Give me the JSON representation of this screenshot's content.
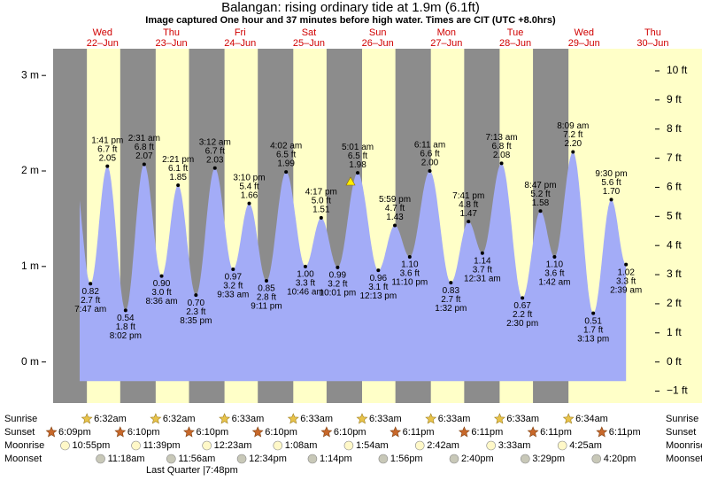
{
  "chart_data": {
    "type": "tide",
    "title": "Balangan: rising  ordinary tide at 1.9m (6.1ft)",
    "subtitle": "Image captured One hour and 37 minutes before high water. Times are CIT (UTC +8.0hrs)",
    "days": [
      {
        "weekday": "Wed",
        "date": "22–Jun"
      },
      {
        "weekday": "Thu",
        "date": "23–Jun"
      },
      {
        "weekday": "Fri",
        "date": "24–Jun"
      },
      {
        "weekday": "Sat",
        "date": "25–Jun"
      },
      {
        "weekday": "Sun",
        "date": "26–Jun"
      },
      {
        "weekday": "Mon",
        "date": "27–Jun"
      },
      {
        "weekday": "Tue",
        "date": "28–Jun"
      },
      {
        "weekday": "Wed",
        "date": "29–Jun"
      },
      {
        "weekday": "Thu",
        "date": "30–Jun"
      }
    ],
    "times": [
      "7:47 am",
      "1:41 pm",
      "8:02 pm",
      "2:31 am",
      "8:36 am",
      "2:21 pm",
      "8:35 pm",
      "3:12 am",
      "9:33 am",
      "3:10 pm",
      "9:11 pm",
      "4:02 am",
      "10:46 am",
      "4:17 pm",
      "10:01 pm",
      "5:01 am",
      "12:13 pm",
      "5:59 pm",
      "11:10 pm",
      "6:11 am",
      "1:32 pm",
      "7:41 pm",
      "12:31 am",
      "7:13 am",
      "2:30 pm",
      "8:47 pm",
      "1:42 am",
      "8:09 am",
      "3:13 pm",
      "9:30 pm",
      "2:39 am"
    ],
    "values": [
      0.82,
      2.05,
      0.54,
      2.07,
      0.9,
      1.85,
      0.7,
      2.03,
      0.97,
      1.66,
      0.85,
      1.99,
      1.0,
      1.51,
      0.99,
      1.98,
      0.96,
      1.43,
      1.1,
      2.0,
      0.83,
      1.47,
      1.14,
      2.08,
      0.67,
      1.58,
      1.1,
      2.2,
      0.51,
      1.7,
      1.02
    ],
    "value_labels": [
      "0.82",
      "2.05",
      "0.54",
      "2.07",
      "0.90",
      "1.85",
      "0.70",
      "2.03",
      "0.97",
      "1.66",
      "0.85",
      "1.99",
      "1.00",
      "1.51",
      "0.99",
      "1.98",
      "0.96",
      "1.43",
      "1.10",
      "2.00",
      "0.83",
      "1.47",
      "1.14",
      "2.08",
      "0.67",
      "1.58",
      "1.10",
      "2.20",
      "0.51",
      "1.70",
      "1.02"
    ],
    "ft_labels": [
      "2.7 ft",
      "6.7 ft",
      "1.8 ft",
      "6.8 ft",
      "3.0 ft",
      "6.1 ft",
      "2.3 ft",
      "6.7 ft",
      "3.2 ft",
      "5.4 ft",
      "2.8 ft",
      "6.5 ft",
      "3.3 ft",
      "5.0 ft",
      "3.2 ft",
      "6.5 ft",
      "3.1 ft",
      "4.7 ft",
      "3.6 ft",
      "6.6 ft",
      "2.7 ft",
      "4.8 ft",
      "3.7 ft",
      "6.8 ft",
      "2.2 ft",
      "5.2 ft",
      "3.6 ft",
      "7.2 ft",
      "1.7 ft",
      "5.6 ft",
      "3.3 ft"
    ],
    "color": "#a3acf7",
    "ylim": [
      -0.43,
      3.28
    ],
    "yticks": [
      {
        "value": 0,
        "label": "0 m"
      },
      {
        "value": 1,
        "label": "1 m"
      },
      {
        "value": 2,
        "label": "2 m"
      },
      {
        "value": 3,
        "label": "3 m"
      }
    ],
    "y2lim": [
      -1.41,
      10.76
    ],
    "y2ticks": [
      {
        "value": -1,
        "label": "−1 ft"
      },
      {
        "value": 0,
        "label": "0 ft"
      },
      {
        "value": 1,
        "label": "1 ft"
      },
      {
        "value": 2,
        "label": "2 ft"
      },
      {
        "value": 3,
        "label": "3 ft"
      },
      {
        "value": 4,
        "label": "4 ft"
      },
      {
        "value": 5,
        "label": "5 ft"
      },
      {
        "value": 6,
        "label": "6 ft"
      },
      {
        "value": 7,
        "label": "7 ft"
      },
      {
        "value": 8,
        "label": "8 ft"
      },
      {
        "value": 9,
        "label": "9 ft"
      },
      {
        "value": 10,
        "label": "10 ft"
      }
    ],
    "rows": {
      "sunrise": {
        "label": "Sunrise",
        "times": [
          "6:32am",
          "6:32am",
          "6:33am",
          "6:33am",
          "6:33am",
          "6:33am",
          "6:33am",
          "6:34am"
        ]
      },
      "sunset": {
        "label": "Sunset",
        "times": [
          "6:09pm",
          "6:10pm",
          "6:10pm",
          "6:10pm",
          "6:10pm",
          "6:11pm",
          "6:11pm",
          "6:11pm",
          "6:11pm"
        ]
      },
      "moonrise": {
        "label": "Moonrise",
        "times": [
          "10:55pm",
          "11:39pm",
          "12:23am",
          "1:08am",
          "1:54am",
          "2:42am",
          "3:33am",
          "4:25am"
        ]
      },
      "moonset": {
        "label": "Moonset",
        "times": [
          "11:18am",
          "11:56am",
          "12:34pm",
          "1:14pm",
          "1:56pm",
          "2:40pm",
          "3:29pm",
          "4:20pm"
        ]
      }
    },
    "moon_phase": "Last Quarter |7:48pm"
  }
}
